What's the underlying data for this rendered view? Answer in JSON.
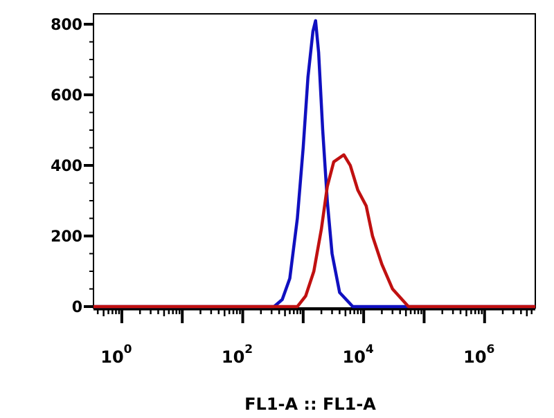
{
  "chart_data": {
    "type": "line",
    "title": "",
    "xlabel": "FL1-A :: FL1-A",
    "ylabel": "",
    "x_scale": "log",
    "xlim": [
      0.34,
      6900000
    ],
    "ylim": [
      0,
      830
    ],
    "grid": false,
    "x_ticks": [
      {
        "base": "10",
        "exp": "0",
        "value": 1
      },
      {
        "base": "10",
        "exp": "2",
        "value": 100
      },
      {
        "base": "10",
        "exp": "4",
        "value": 10000
      },
      {
        "base": "10",
        "exp": "6",
        "value": 1000000
      }
    ],
    "y_ticks": [
      "0",
      "200",
      "400",
      "600",
      "800"
    ],
    "series": [
      {
        "color": "#1010c0",
        "points": [
          [
            330,
            0
          ],
          [
            450,
            20
          ],
          [
            600,
            80
          ],
          [
            800,
            250
          ],
          [
            1000,
            450
          ],
          [
            1200,
            650
          ],
          [
            1450,
            780
          ],
          [
            1600,
            810
          ],
          [
            1800,
            720
          ],
          [
            2100,
            500
          ],
          [
            2500,
            300
          ],
          [
            3000,
            150
          ],
          [
            4000,
            40
          ],
          [
            6600,
            0
          ]
        ]
      },
      {
        "color": "#c01010",
        "points": [
          [
            800,
            0
          ],
          [
            1100,
            30
          ],
          [
            1500,
            100
          ],
          [
            2000,
            220
          ],
          [
            2500,
            340
          ],
          [
            3200,
            410
          ],
          [
            4700,
            430
          ],
          [
            6000,
            400
          ],
          [
            8000,
            330
          ],
          [
            11000,
            285
          ],
          [
            14000,
            200
          ],
          [
            20000,
            120
          ],
          [
            30000,
            50
          ],
          [
            55000,
            0
          ]
        ]
      }
    ]
  }
}
